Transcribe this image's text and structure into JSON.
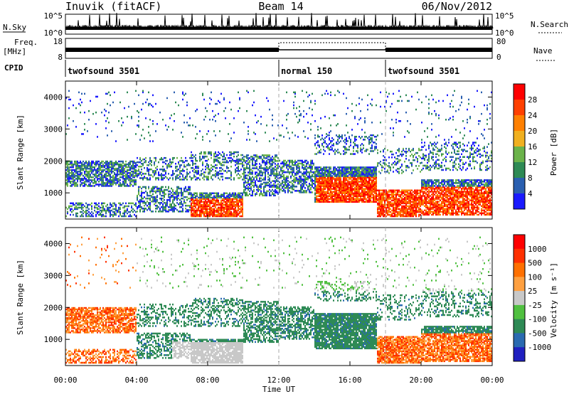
{
  "header": {
    "station": "Inuvik (fitACF)",
    "beam": "Beam 14",
    "date": "06/Nov/2012"
  },
  "top_panels": {
    "nsky_label": "N.Sky",
    "nsky_ticks": [
      "10^5",
      "10^0"
    ],
    "nsearch_label": "N.Search",
    "nsearch_ticks": [
      "10^5",
      "10^0"
    ],
    "freq_label": "Freq.",
    "freq_unit": "[MHz]",
    "freq_ticks": [
      "18",
      "8"
    ],
    "nave_label": "Nave",
    "nave_ticks": [
      "80",
      "0"
    ],
    "cpid_label": "CPID",
    "cpid_segments": [
      {
        "name": "twofsound 3501",
        "start_h": 0,
        "end_h": 12
      },
      {
        "name": "normal 150",
        "start_h": 12,
        "end_h": 18
      },
      {
        "name": "twofsound 3501",
        "start_h": 18,
        "end_h": 24
      }
    ]
  },
  "colors": {
    "power_scale": [
      "#1a1aff",
      "#2a5fb0",
      "#2e8a55",
      "#6bb34a",
      "#f0b020",
      "#ff8000",
      "#ff4000",
      "#ff0000"
    ],
    "velocity_scale": [
      "#2020c0",
      "#2a6ab0",
      "#2e8a55",
      "#50c040",
      "#c8c8c8",
      "#ffa040",
      "#ff7000",
      "#ff3000",
      "#ff0000"
    ]
  },
  "chart_data": [
    {
      "type": "heatmap",
      "title": "",
      "xlabel": "Time UT",
      "ylabel": "Slant Range [km]",
      "x_ticks": [
        "00:00",
        "04:00",
        "08:00",
        "12:00",
        "16:00",
        "20:00",
        "00:00"
      ],
      "y_ticks": [
        "1000",
        "2000",
        "3000",
        "4000"
      ],
      "xlim": [
        0,
        24
      ],
      "ylim": [
        180,
        4500
      ],
      "colorbar_label": "Power [dB]",
      "colorbar_ticks": [
        "28",
        "24",
        "20",
        "16",
        "12",
        "8",
        "4"
      ],
      "colorbar_range": [
        0,
        30
      ]
    },
    {
      "type": "heatmap",
      "title": "",
      "xlabel": "Time UT",
      "ylabel": "Slant Range [km]",
      "x_ticks": [
        "00:00",
        "04:00",
        "08:00",
        "12:00",
        "16:00",
        "20:00",
        "00:00"
      ],
      "y_ticks": [
        "1000",
        "2000",
        "3000",
        "4000"
      ],
      "xlim": [
        0,
        24
      ],
      "ylim": [
        180,
        4500
      ],
      "colorbar_label": "Velocity [m s⁻¹]",
      "colorbar_ticks": [
        "1000",
        "500",
        "100",
        "25",
        "-25",
        "-100",
        "-500",
        "-1000"
      ]
    }
  ]
}
